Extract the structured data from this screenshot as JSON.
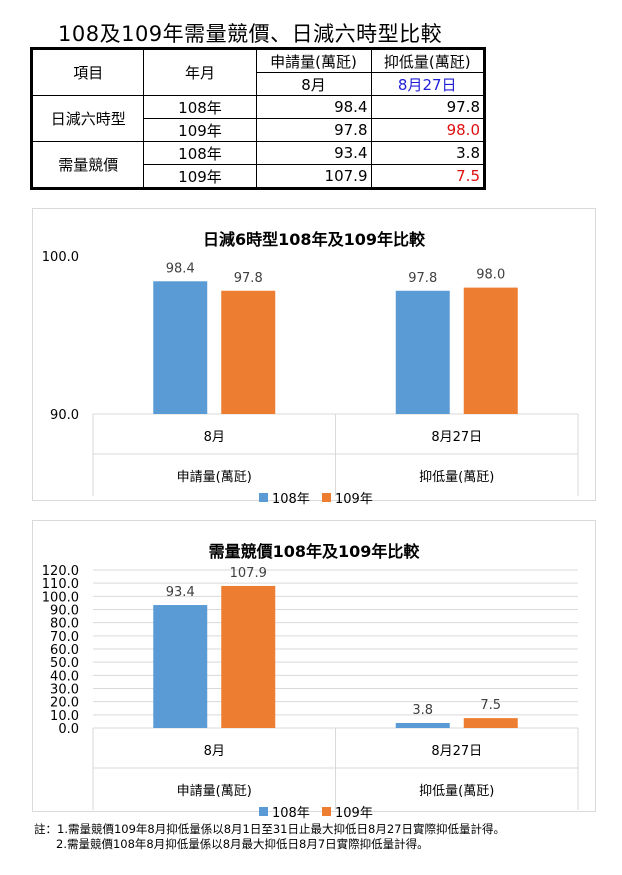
{
  "page": {
    "title": "108及109年需量競價、日減六時型比較"
  },
  "table": {
    "headers": {
      "item": "項目",
      "year": "年月",
      "apply": "申請量(萬瓩)",
      "suppress": "抑低量(萬瓩)",
      "apply_sub": "8月",
      "suppress_sub": "8月27日"
    },
    "groups": [
      {
        "name": "日減六時型",
        "rows": [
          {
            "year": "108年",
            "apply": "98.4",
            "suppress": "97.8"
          },
          {
            "year": "109年",
            "apply": "97.8",
            "suppress": "98.0"
          }
        ]
      },
      {
        "name": "需量競價",
        "rows": [
          {
            "year": "108年",
            "apply": "93.4",
            "suppress": "3.8"
          },
          {
            "year": "109年",
            "apply": "107.9",
            "suppress": "7.5"
          }
        ]
      }
    ],
    "colors": {
      "sub_date": "#1f1fd6",
      "highlight": "#e01010"
    }
  },
  "chart_data": [
    {
      "type": "bar",
      "title": "日減6時型108年及109年比較",
      "categories": [
        "8月",
        "8月27日"
      ],
      "category_groups": [
        "申請量(萬瓩)",
        "抑低量(萬瓩)"
      ],
      "series": [
        {
          "name": "108年",
          "values": [
            98.4,
            97.8
          ],
          "color": "#5b9bd5"
        },
        {
          "name": "109年",
          "values": [
            97.8,
            98.0
          ],
          "color": "#ed7d31"
        }
      ],
      "value_labels": [
        [
          "98.4",
          "97.8"
        ],
        [
          "97.8",
          "98.0"
        ]
      ],
      "ylim": [
        90,
        100
      ],
      "yticks": [
        "100.0",
        "90.0"
      ],
      "grid": false,
      "legend": "bottom"
    },
    {
      "type": "bar",
      "title": "需量競價108年及109年比較",
      "categories": [
        "8月",
        "8月27日"
      ],
      "category_groups": [
        "申請量(萬瓩)",
        "抑低量(萬瓩)"
      ],
      "series": [
        {
          "name": "108年",
          "values": [
            93.4,
            3.8
          ],
          "color": "#5b9bd5"
        },
        {
          "name": "109年",
          "values": [
            107.9,
            7.5
          ],
          "color": "#ed7d31"
        }
      ],
      "value_labels": [
        [
          "93.4",
          "3.8"
        ],
        [
          "107.9",
          "7.5"
        ]
      ],
      "ylim": [
        0,
        120
      ],
      "yticks": [
        "120.0",
        "110.0",
        "100.0",
        "90.0",
        "80.0",
        "70.0",
        "60.0",
        "50.0",
        "40.0",
        "30.0",
        "20.0",
        "10.0",
        "0.0"
      ],
      "grid": true,
      "legend": "bottom"
    }
  ],
  "notes": {
    "line1": "註：1.需量競價109年8月抑低量係以8月1日至31日止最大抑低日8月27日實際抑低量計得。",
    "line2": "2.需量競價108年8月抑低量係以8月最大抑低日8月7日實際抑低量計得。"
  }
}
